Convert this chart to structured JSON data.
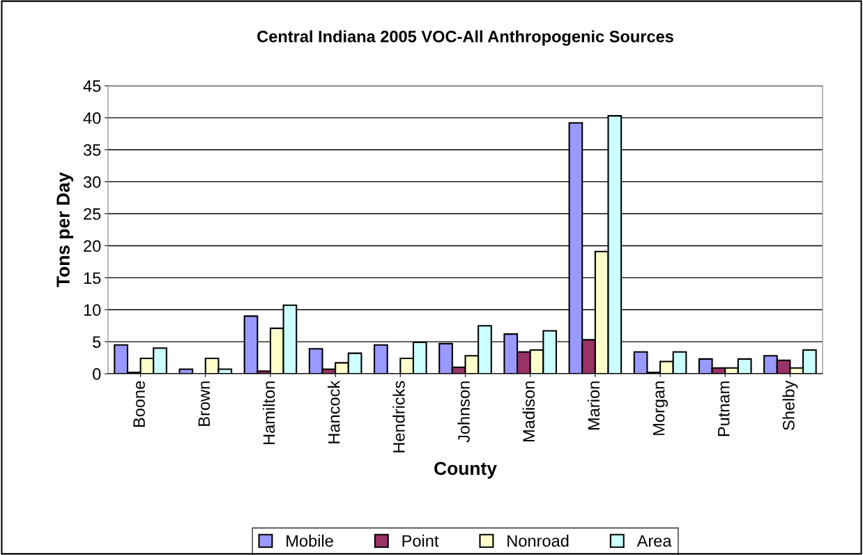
{
  "chart_data": {
    "type": "bar",
    "title": "Central Indiana 2005 VOC-All Anthropogenic Sources",
    "xlabel": "County",
    "ylabel": "Tons per Day",
    "categories": [
      "Boone",
      "Brown",
      "Hamilton",
      "Hancock",
      "Hendricks",
      "Johnson",
      "Madison",
      "Marion",
      "Morgan",
      "Putnam",
      "Shelby"
    ],
    "series": [
      {
        "name": "Mobile",
        "color": "#9999ff",
        "values": [
          4.5,
          0.7,
          9.0,
          3.9,
          4.5,
          4.7,
          6.2,
          39.2,
          3.4,
          2.3,
          2.8
        ]
      },
      {
        "name": "Point",
        "color": "#993366",
        "values": [
          0.2,
          null,
          0.4,
          0.7,
          null,
          1.0,
          3.4,
          5.3,
          0.2,
          0.9,
          2.1
        ]
      },
      {
        "name": "Nonroad",
        "color": "#ffffcc",
        "values": [
          2.4,
          2.4,
          7.1,
          1.7,
          2.4,
          2.8,
          3.7,
          19.1,
          1.9,
          0.9,
          0.9
        ]
      },
      {
        "name": "Area",
        "color": "#ccffff",
        "values": [
          4.0,
          0.7,
          10.7,
          3.2,
          4.9,
          7.5,
          6.7,
          40.3,
          3.4,
          2.3,
          3.7
        ]
      }
    ],
    "ylim": [
      0,
      45
    ],
    "yticks": [
      0,
      5,
      10,
      15,
      20,
      25,
      30,
      35,
      40,
      45
    ],
    "grid": "y",
    "legend": "bottom"
  }
}
